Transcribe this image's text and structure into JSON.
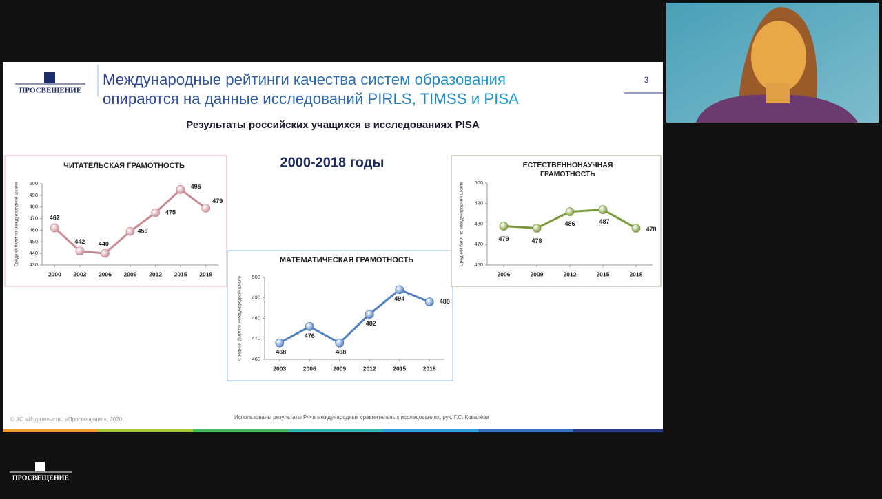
{
  "header": {
    "logo": "ПРОСВЕЩЕНИЕ",
    "title_lines": [
      "Международные рейтинги качества систем образования",
      "опираются на данные исследований PIRLS, TIMSS и PISA"
    ],
    "page_number": "3"
  },
  "subtitle": "Результаты российских учащихся в исследованиях PISA",
  "period": "2000-2018 годы",
  "chart_data": [
    {
      "type": "line",
      "title": "ЧИТАТЕЛЬСКАЯ ГРАМОТНОСТЬ",
      "ylabel": "Средний балл по международной шкале",
      "categories": [
        "2000",
        "2003",
        "2006",
        "2009",
        "2012",
        "2015",
        "2018"
      ],
      "values": [
        462,
        442,
        440,
        459,
        475,
        495,
        479
      ],
      "color": "#c98a93",
      "border_color": "#e8b4bc",
      "ylim": [
        430,
        500
      ],
      "yticks": [
        430,
        440,
        450,
        460,
        470,
        480,
        490,
        500
      ]
    },
    {
      "type": "line",
      "title": "МАТЕМАТИЧЕСКАЯ ГРАМОТНОСТЬ",
      "ylabel": "Средний балл по международной шкале",
      "categories": [
        "2003",
        "2006",
        "2009",
        "2012",
        "2015",
        "2018"
      ],
      "values": [
        468,
        476,
        468,
        482,
        494,
        488
      ],
      "color": "#4f7fc2",
      "border_color": "#8fbde0",
      "ylim": [
        460,
        500
      ],
      "yticks": [
        460,
        470,
        480,
        490,
        500
      ]
    },
    {
      "type": "line",
      "title": [
        "ЕСТЕСТВЕННОНАУЧНАЯ",
        "ГРАМОТНОСТЬ"
      ],
      "ylabel": "Средний балл по международной шкале",
      "categories": [
        "2006",
        "2009",
        "2012",
        "2015",
        "2018"
      ],
      "values": [
        479,
        478,
        486,
        487,
        478
      ],
      "color": "#7a9a3a",
      "border_color": "#a8a890",
      "ylim": [
        460,
        500
      ],
      "yticks": [
        460,
        470,
        480,
        490,
        500
      ]
    }
  ],
  "footer": {
    "copyright": "© АО «Издательство «Просвещение», 2020",
    "source": "Использованы результаты РФ в международных сравнительных исследованиях, рук. Г.С. Ковалёва"
  },
  "bottom_logo": "ПРОСВЕЩЕНИЕ"
}
